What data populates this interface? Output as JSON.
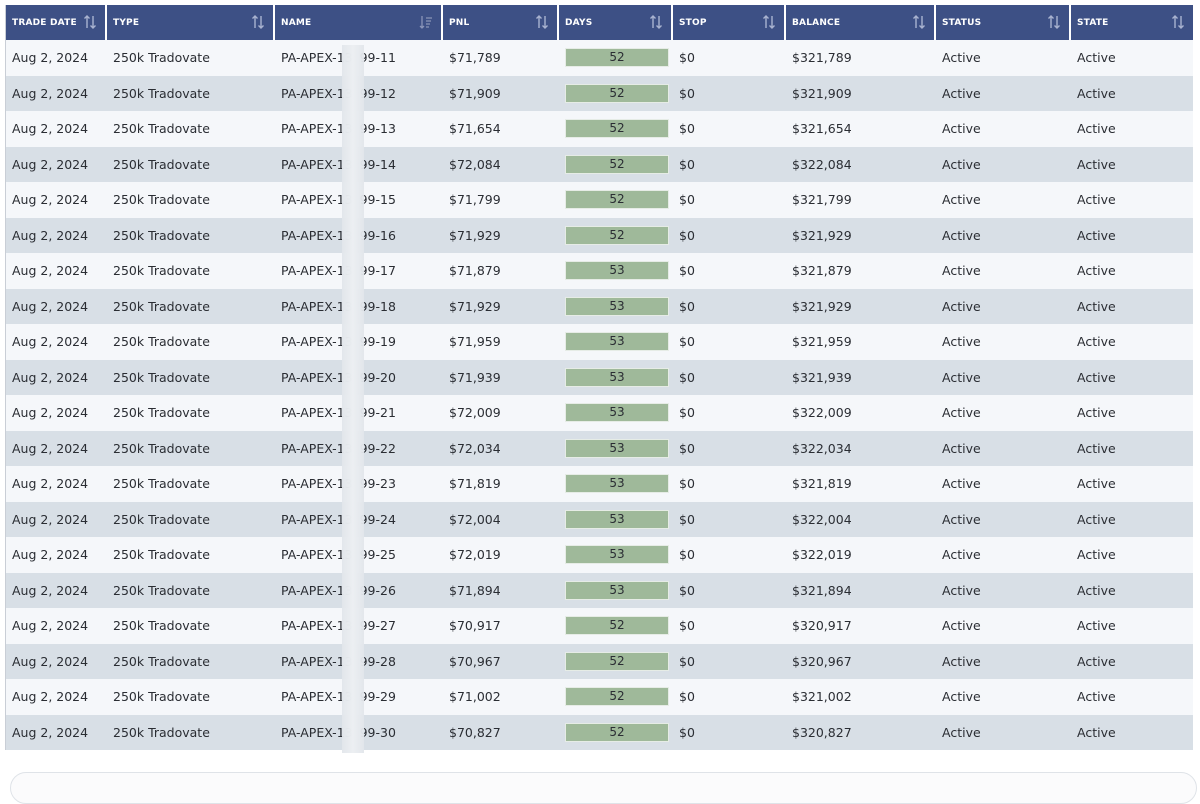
{
  "columns": [
    {
      "key": "trade_date",
      "label": "TRADE DATE"
    },
    {
      "key": "type",
      "label": "TYPE"
    },
    {
      "key": "name",
      "label": "NAME"
    },
    {
      "key": "pnl",
      "label": "PNL"
    },
    {
      "key": "days",
      "label": "DAYS"
    },
    {
      "key": "stop",
      "label": "STOP"
    },
    {
      "key": "balance",
      "label": "BALANCE"
    },
    {
      "key": "status",
      "label": "STATUS"
    },
    {
      "key": "state",
      "label": "STATE"
    }
  ],
  "icons": {
    "sort": "sort-arrows-icon",
    "sort_active": "sort-descending-icon"
  },
  "colors": {
    "header_bg": "#3d5085",
    "row_light": "#f5f7fa",
    "row_dark": "#d8dfe6",
    "days_bar": "#9fb99a"
  },
  "rows": [
    {
      "trade_date": "Aug 2, 2024",
      "type": "250k Tradovate",
      "name_prefix": "PA-APEX-13",
      "name_suffix": "99-11",
      "pnl": "$71,789",
      "days": "52",
      "stop": "$0",
      "balance": "$321,789",
      "status": "Active",
      "state": "Active"
    },
    {
      "trade_date": "Aug 2, 2024",
      "type": "250k Tradovate",
      "name_prefix": "PA-APEX-13",
      "name_suffix": "99-12",
      "pnl": "$71,909",
      "days": "52",
      "stop": "$0",
      "balance": "$321,909",
      "status": "Active",
      "state": "Active"
    },
    {
      "trade_date": "Aug 2, 2024",
      "type": "250k Tradovate",
      "name_prefix": "PA-APEX-13",
      "name_suffix": "99-13",
      "pnl": "$71,654",
      "days": "52",
      "stop": "$0",
      "balance": "$321,654",
      "status": "Active",
      "state": "Active"
    },
    {
      "trade_date": "Aug 2, 2024",
      "type": "250k Tradovate",
      "name_prefix": "PA-APEX-13",
      "name_suffix": "99-14",
      "pnl": "$72,084",
      "days": "52",
      "stop": "$0",
      "balance": "$322,084",
      "status": "Active",
      "state": "Active"
    },
    {
      "trade_date": "Aug 2, 2024",
      "type": "250k Tradovate",
      "name_prefix": "PA-APEX-13",
      "name_suffix": "99-15",
      "pnl": "$71,799",
      "days": "52",
      "stop": "$0",
      "balance": "$321,799",
      "status": "Active",
      "state": "Active"
    },
    {
      "trade_date": "Aug 2, 2024",
      "type": "250k Tradovate",
      "name_prefix": "PA-APEX-13",
      "name_suffix": "99-16",
      "pnl": "$71,929",
      "days": "52",
      "stop": "$0",
      "balance": "$321,929",
      "status": "Active",
      "state": "Active"
    },
    {
      "trade_date": "Aug 2, 2024",
      "type": "250k Tradovate",
      "name_prefix": "PA-APEX-13",
      "name_suffix": "99-17",
      "pnl": "$71,879",
      "days": "53",
      "stop": "$0",
      "balance": "$321,879",
      "status": "Active",
      "state": "Active"
    },
    {
      "trade_date": "Aug 2, 2024",
      "type": "250k Tradovate",
      "name_prefix": "PA-APEX-13",
      "name_suffix": "99-18",
      "pnl": "$71,929",
      "days": "53",
      "stop": "$0",
      "balance": "$321,929",
      "status": "Active",
      "state": "Active"
    },
    {
      "trade_date": "Aug 2, 2024",
      "type": "250k Tradovate",
      "name_prefix": "PA-APEX-13",
      "name_suffix": "99-19",
      "pnl": "$71,959",
      "days": "53",
      "stop": "$0",
      "balance": "$321,959",
      "status": "Active",
      "state": "Active"
    },
    {
      "trade_date": "Aug 2, 2024",
      "type": "250k Tradovate",
      "name_prefix": "PA-APEX-13",
      "name_suffix": "99-20",
      "pnl": "$71,939",
      "days": "53",
      "stop": "$0",
      "balance": "$321,939",
      "status": "Active",
      "state": "Active"
    },
    {
      "trade_date": "Aug 2, 2024",
      "type": "250k Tradovate",
      "name_prefix": "PA-APEX-13",
      "name_suffix": "99-21",
      "pnl": "$72,009",
      "days": "53",
      "stop": "$0",
      "balance": "$322,009",
      "status": "Active",
      "state": "Active"
    },
    {
      "trade_date": "Aug 2, 2024",
      "type": "250k Tradovate",
      "name_prefix": "PA-APEX-13",
      "name_suffix": "99-22",
      "pnl": "$72,034",
      "days": "53",
      "stop": "$0",
      "balance": "$322,034",
      "status": "Active",
      "state": "Active"
    },
    {
      "trade_date": "Aug 2, 2024",
      "type": "250k Tradovate",
      "name_prefix": "PA-APEX-13",
      "name_suffix": "99-23",
      "pnl": "$71,819",
      "days": "53",
      "stop": "$0",
      "balance": "$321,819",
      "status": "Active",
      "state": "Active"
    },
    {
      "trade_date": "Aug 2, 2024",
      "type": "250k Tradovate",
      "name_prefix": "PA-APEX-13",
      "name_suffix": "99-24",
      "pnl": "$72,004",
      "days": "53",
      "stop": "$0",
      "balance": "$322,004",
      "status": "Active",
      "state": "Active"
    },
    {
      "trade_date": "Aug 2, 2024",
      "type": "250k Tradovate",
      "name_prefix": "PA-APEX-13",
      "name_suffix": "99-25",
      "pnl": "$72,019",
      "days": "53",
      "stop": "$0",
      "balance": "$322,019",
      "status": "Active",
      "state": "Active"
    },
    {
      "trade_date": "Aug 2, 2024",
      "type": "250k Tradovate",
      "name_prefix": "PA-APEX-13",
      "name_suffix": "99-26",
      "pnl": "$71,894",
      "days": "53",
      "stop": "$0",
      "balance": "$321,894",
      "status": "Active",
      "state": "Active"
    },
    {
      "trade_date": "Aug 2, 2024",
      "type": "250k Tradovate",
      "name_prefix": "PA-APEX-13",
      "name_suffix": "99-27",
      "pnl": "$70,917",
      "days": "52",
      "stop": "$0",
      "balance": "$320,917",
      "status": "Active",
      "state": "Active"
    },
    {
      "trade_date": "Aug 2, 2024",
      "type": "250k Tradovate",
      "name_prefix": "PA-APEX-13",
      "name_suffix": "99-28",
      "pnl": "$70,967",
      "days": "52",
      "stop": "$0",
      "balance": "$320,967",
      "status": "Active",
      "state": "Active"
    },
    {
      "trade_date": "Aug 2, 2024",
      "type": "250k Tradovate",
      "name_prefix": "PA-APEX-13",
      "name_suffix": "99-29",
      "pnl": "$71,002",
      "days": "52",
      "stop": "$0",
      "balance": "$321,002",
      "status": "Active",
      "state": "Active"
    },
    {
      "trade_date": "Aug 2, 2024",
      "type": "250k Tradovate",
      "name_prefix": "PA-APEX-13",
      "name_suffix": "99-30",
      "pnl": "$70,827",
      "days": "52",
      "stop": "$0",
      "balance": "$320,827",
      "status": "Active",
      "state": "Active"
    }
  ]
}
